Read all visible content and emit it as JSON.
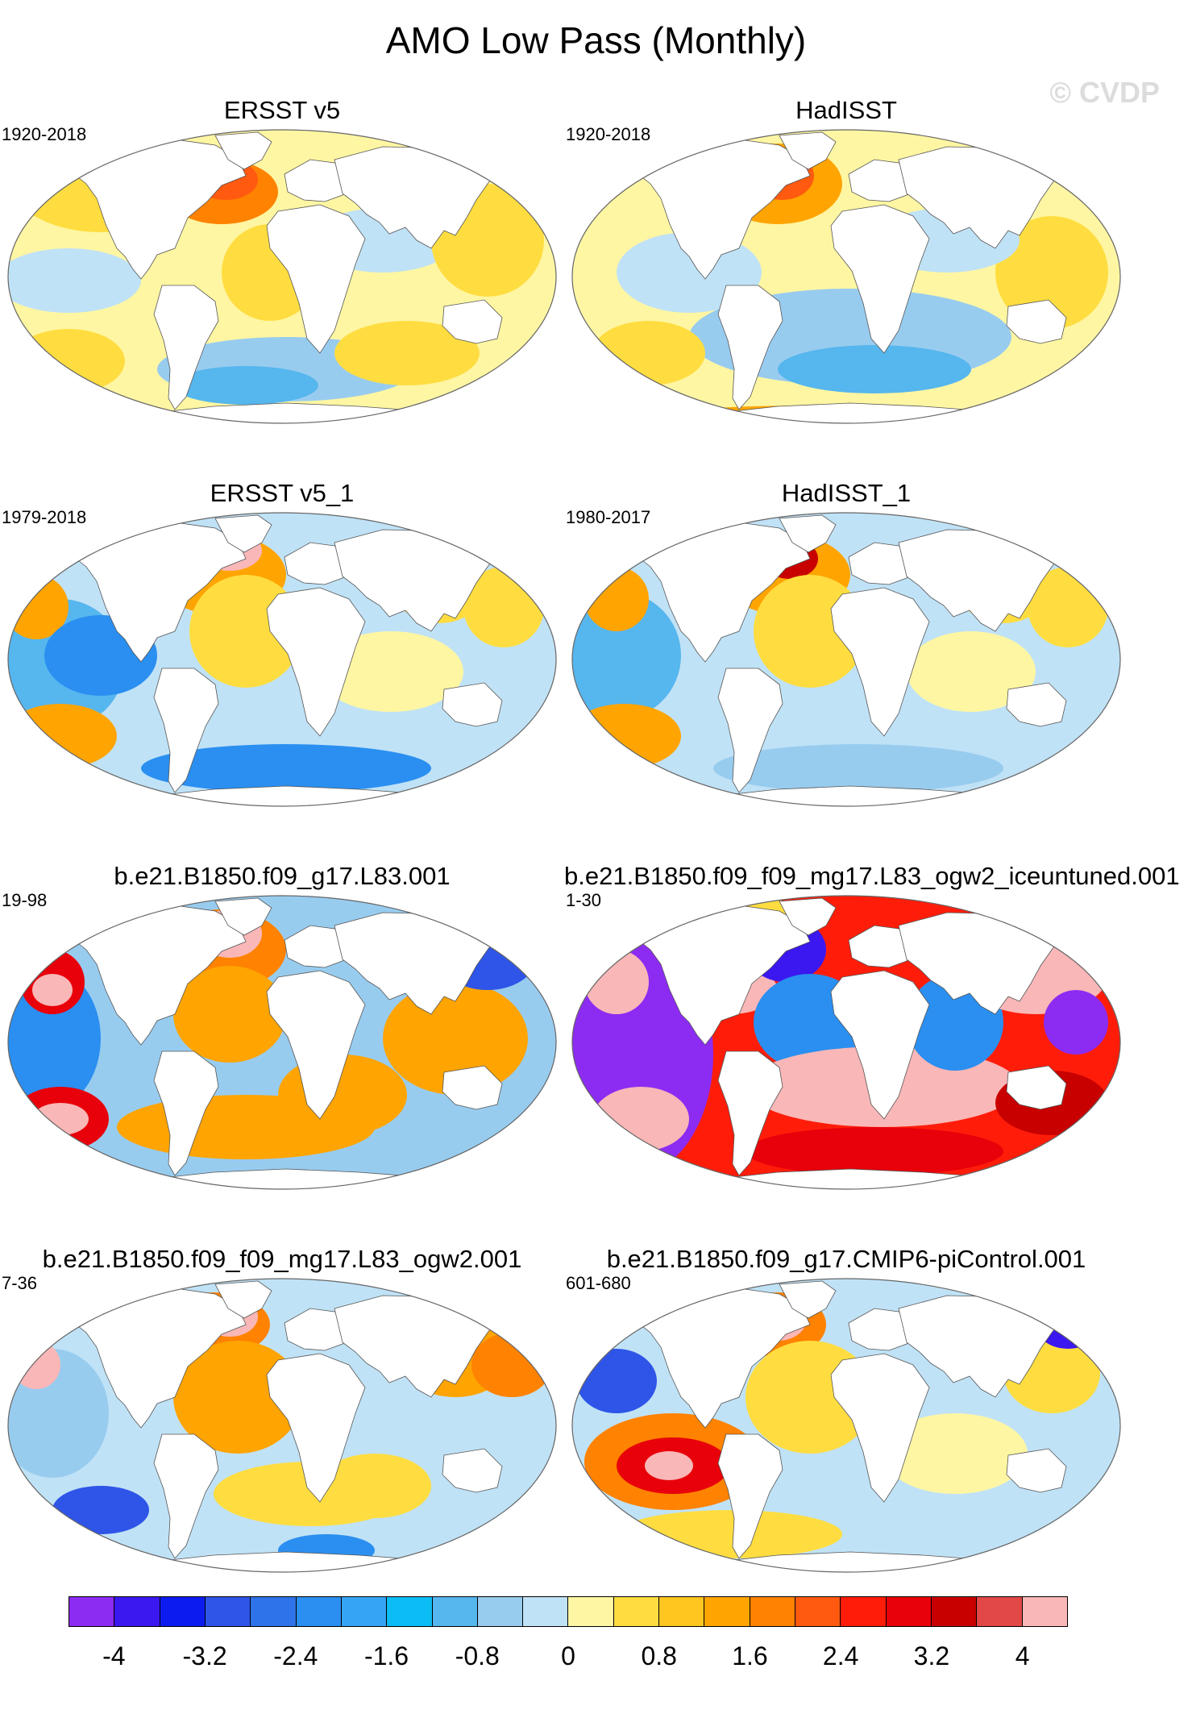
{
  "title": "AMO Low Pass (Monthly)",
  "watermark": "© CVDP",
  "panels": [
    {
      "title": "ERSST v5",
      "years": "1920-2018",
      "scheme": "obs_a"
    },
    {
      "title": "HadISST",
      "years": "1920-2018",
      "scheme": "obs_b"
    },
    {
      "title": "ERSST v5_1",
      "years": "1979-2018",
      "scheme": "obs_c"
    },
    {
      "title": "HadISST_1",
      "years": "1980-2017",
      "scheme": "obs_d"
    },
    {
      "title": "b.e21.B1850.f09_g17.L83.001",
      "years": "19-98",
      "scheme": "model_a"
    },
    {
      "title": "b.e21.B1850.f09_f09_mg17.L83_ogw2_iceuntuned.001",
      "years": "1-30",
      "scheme": "model_b"
    },
    {
      "title": "b.e21.B1850.f09_f09_mg17.L83_ogw2.001",
      "years": "7-36",
      "scheme": "model_c"
    },
    {
      "title": "b.e21.B1850.f09_g17.CMIP6-piControl.001",
      "years": "601-680",
      "scheme": "model_d"
    }
  ],
  "colorbar": {
    "colors": [
      "#8c2cf2",
      "#3b18f0",
      "#0c1cf0",
      "#2e55e8",
      "#2f73ea",
      "#2a8ff0",
      "#35a4f2",
      "#0cbcf4",
      "#56b6ee",
      "#98ccef",
      "#c0e2f6",
      "#fff6a3",
      "#ffdd40",
      "#ffc620",
      "#ffa400",
      "#ff8200",
      "#ff5a10",
      "#ff1d0a",
      "#e8000a",
      "#c80000",
      "#e24848",
      "#f9b7b7"
    ],
    "labels": [
      "-4",
      "-3.2",
      "-2.4",
      "-1.6",
      "-0.8",
      "0",
      "0.8",
      "1.6",
      "2.4",
      "3.2",
      "4"
    ]
  }
}
